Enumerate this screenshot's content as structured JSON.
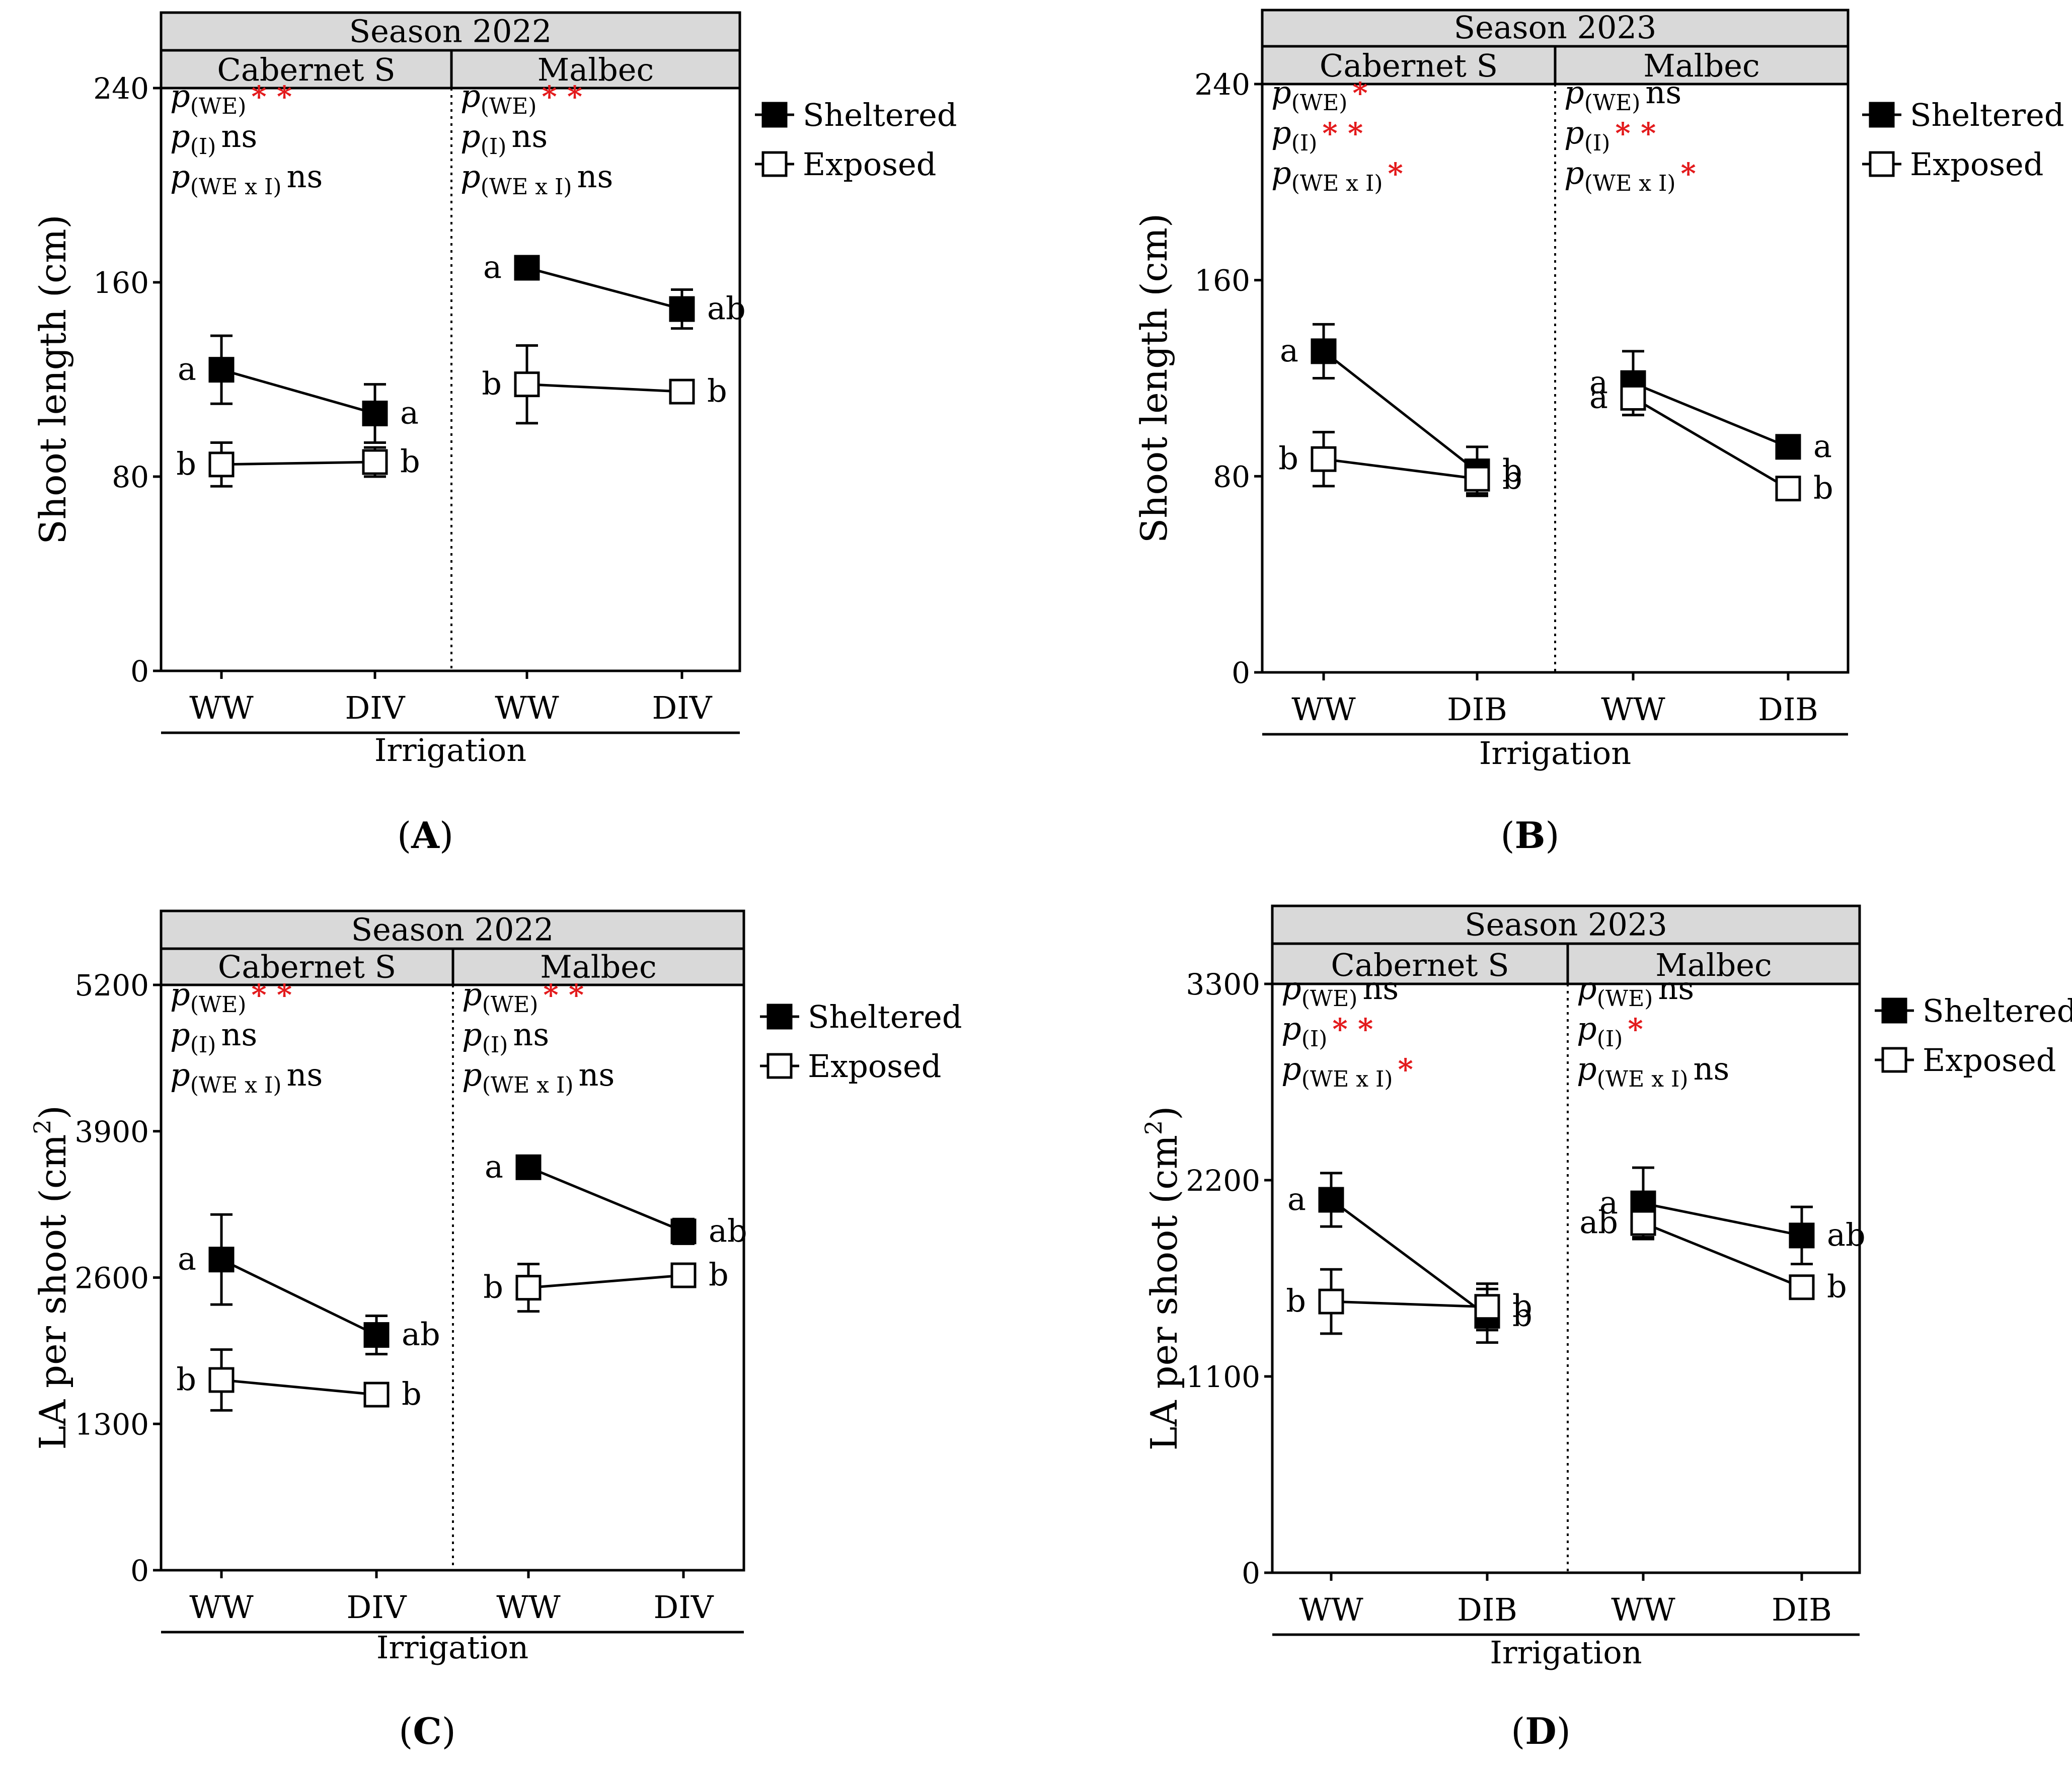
{
  "figure": {
    "common": {
      "xlabel": "Irrigation",
      "series_names": [
        "Sheltered",
        "Exposed"
      ],
      "stat_prefix": "p",
      "stat_subscripts": [
        "(WE)",
        "(I)",
        "(WE x I)"
      ]
    },
    "panels": [
      {
        "id": "A",
        "panel_label": "A",
        "season": "Season 2022",
        "cultivars": [
          "Cabernet S",
          "Malbec"
        ],
        "ylabel": "Shoot length (cm)",
        "ylabel_sup": "",
        "ytick_labels": [
          "0",
          "80",
          "160",
          "240"
        ]
      },
      {
        "id": "B",
        "panel_label": "B",
        "season": "Season 2023",
        "cultivars": [
          "Cabernet S",
          "Malbec"
        ],
        "ylabel": "Shoot length (cm)",
        "ylabel_sup": "",
        "ytick_labels": [
          "0",
          "80",
          "160",
          "240"
        ]
      },
      {
        "id": "C",
        "panel_label": "C",
        "season": "Season 2022",
        "cultivars": [
          "Cabernet S",
          "Malbec"
        ],
        "ylabel": "LA per shoot (cm",
        "ylabel_sup": "2",
        "ytick_labels": [
          "0",
          "1300",
          "2600",
          "3900",
          "5200"
        ]
      },
      {
        "id": "D",
        "panel_label": "D",
        "season": "Season 2023",
        "cultivars": [
          "Cabernet S",
          "Malbec"
        ],
        "ylabel": "LA per shoot (cm",
        "ylabel_sup": "2",
        "ytick_labels": [
          "0",
          "1100",
          "2200",
          "3300"
        ]
      }
    ]
  },
  "chart_data": [
    {
      "type": "line",
      "panel": "A",
      "title": "Season 2022",
      "xlabel": "Irrigation",
      "ylabel": "Shoot length (cm)",
      "ylim": [
        0,
        240
      ],
      "yticks": [
        0,
        80,
        160,
        240
      ],
      "groups": [
        {
          "cultivar": "Cabernet S",
          "categories": [
            "WW",
            "DIV"
          ],
          "stats": [
            {
              "term": "(WE)",
              "result": "**"
            },
            {
              "term": "(I)",
              "result": "ns"
            },
            {
              "term": "(WE x I)",
              "result": "ns"
            }
          ],
          "series": [
            {
              "name": "Sheltered",
              "values": [
                124,
                106
              ],
              "errors": [
                14,
                12
              ],
              "letters": [
                "a",
                "a"
              ]
            },
            {
              "name": "Exposed",
              "values": [
                85,
                86
              ],
              "errors": [
                9,
                6
              ],
              "letters": [
                "b",
                "b"
              ]
            }
          ]
        },
        {
          "cultivar": "Malbec",
          "categories": [
            "WW",
            "DIV"
          ],
          "stats": [
            {
              "term": "(WE)",
              "result": "**"
            },
            {
              "term": "(I)",
              "result": "ns"
            },
            {
              "term": "(WE x I)",
              "result": "ns"
            }
          ],
          "series": [
            {
              "name": "Sheltered",
              "values": [
                166,
                149
              ],
              "errors": [
                4,
                8
              ],
              "letters": [
                "a",
                "ab"
              ]
            },
            {
              "name": "Exposed",
              "values": [
                118,
                115
              ],
              "errors": [
                16,
                4
              ],
              "letters": [
                "b",
                "b"
              ]
            }
          ]
        }
      ]
    },
    {
      "type": "line",
      "panel": "B",
      "title": "Season 2023",
      "xlabel": "Irrigation",
      "ylabel": "Shoot length (cm)",
      "ylim": [
        0,
        240
      ],
      "yticks": [
        0,
        80,
        160,
        240
      ],
      "groups": [
        {
          "cultivar": "Cabernet S",
          "categories": [
            "WW",
            "DIB"
          ],
          "stats": [
            {
              "term": "(WE)",
              "result": "*"
            },
            {
              "term": "(I)",
              "result": "**"
            },
            {
              "term": "(WE x I)",
              "result": "*"
            }
          ],
          "series": [
            {
              "name": "Sheltered",
              "values": [
                131,
                82
              ],
              "errors": [
                11,
                10
              ],
              "letters": [
                "a",
                "b"
              ]
            },
            {
              "name": "Exposed",
              "values": [
                87,
                79
              ],
              "errors": [
                11,
                6
              ],
              "letters": [
                "b",
                "b"
              ]
            }
          ]
        },
        {
          "cultivar": "Malbec",
          "categories": [
            "WW",
            "DIB"
          ],
          "stats": [
            {
              "term": "(WE)",
              "result": "ns"
            },
            {
              "term": "(I)",
              "result": "**"
            },
            {
              "term": "(WE x I)",
              "result": "*"
            }
          ],
          "series": [
            {
              "name": "Sheltered",
              "values": [
                118,
                92
              ],
              "errors": [
                13,
                3
              ],
              "letters": [
                "a",
                "a"
              ]
            },
            {
              "name": "Exposed",
              "values": [
                112,
                75
              ],
              "errors": [
                7,
                3
              ],
              "letters": [
                "a",
                "b"
              ]
            }
          ]
        }
      ]
    },
    {
      "type": "line",
      "panel": "C",
      "title": "Season 2022",
      "xlabel": "Irrigation",
      "ylabel": "LA per shoot (cm2)",
      "ylim": [
        0,
        5200
      ],
      "yticks": [
        0,
        1300,
        2600,
        3900,
        5200
      ],
      "groups": [
        {
          "cultivar": "Cabernet S",
          "categories": [
            "WW",
            "DIV"
          ],
          "stats": [
            {
              "term": "(WE)",
              "result": "**"
            },
            {
              "term": "(I)",
              "result": "ns"
            },
            {
              "term": "(WE x I)",
              "result": "ns"
            }
          ],
          "series": [
            {
              "name": "Sheltered",
              "values": [
                2760,
                2090
              ],
              "errors": [
                400,
                170
              ],
              "letters": [
                "a",
                "ab"
              ]
            },
            {
              "name": "Exposed",
              "values": [
                1690,
                1560
              ],
              "errors": [
                270,
                70
              ],
              "letters": [
                "b",
                "b"
              ]
            }
          ]
        },
        {
          "cultivar": "Malbec",
          "categories": [
            "WW",
            "DIV"
          ],
          "stats": [
            {
              "term": "(WE)",
              "result": "**"
            },
            {
              "term": "(I)",
              "result": "ns"
            },
            {
              "term": "(WE x I)",
              "result": "ns"
            }
          ],
          "series": [
            {
              "name": "Sheltered",
              "values": [
                3580,
                3010
              ],
              "errors": [
                80,
                110
              ],
              "letters": [
                "a",
                "ab"
              ]
            },
            {
              "name": "Exposed",
              "values": [
                2510,
                2620
              ],
              "errors": [
                210,
                100
              ],
              "letters": [
                "b",
                "b"
              ]
            }
          ]
        }
      ]
    },
    {
      "type": "line",
      "panel": "D",
      "title": "Season 2023",
      "xlabel": "Irrigation",
      "ylabel": "LA per shoot (cm2)",
      "ylim": [
        0,
        3300
      ],
      "yticks": [
        0,
        1100,
        2200,
        3300
      ],
      "groups": [
        {
          "cultivar": "Cabernet S",
          "categories": [
            "WW",
            "DIB"
          ],
          "stats": [
            {
              "term": "(WE)",
              "result": "ns"
            },
            {
              "term": "(I)",
              "result": "**"
            },
            {
              "term": "(WE x I)",
              "result": "*"
            }
          ],
          "series": [
            {
              "name": "Sheltered",
              "values": [
                2090,
                1440
              ],
              "errors": [
                150,
                150
              ],
              "letters": [
                "a",
                "b"
              ]
            },
            {
              "name": "Exposed",
              "values": [
                1520,
                1490
              ],
              "errors": [
                180,
                130
              ],
              "letters": [
                "b",
                "b"
              ]
            }
          ]
        },
        {
          "cultivar": "Malbec",
          "categories": [
            "WW",
            "DIB"
          ],
          "stats": [
            {
              "term": "(WE)",
              "result": "ns"
            },
            {
              "term": "(I)",
              "result": "*"
            },
            {
              "term": "(WE x I)",
              "result": "ns"
            }
          ],
          "series": [
            {
              "name": "Sheltered",
              "values": [
                2070,
                1890
              ],
              "errors": [
                200,
                160
              ],
              "letters": [
                "a",
                "ab"
              ]
            },
            {
              "name": "Exposed",
              "values": [
                1960,
                1600
              ],
              "errors": [
                80,
                40
              ],
              "letters": [
                "ab",
                "b"
              ]
            }
          ]
        }
      ]
    }
  ]
}
